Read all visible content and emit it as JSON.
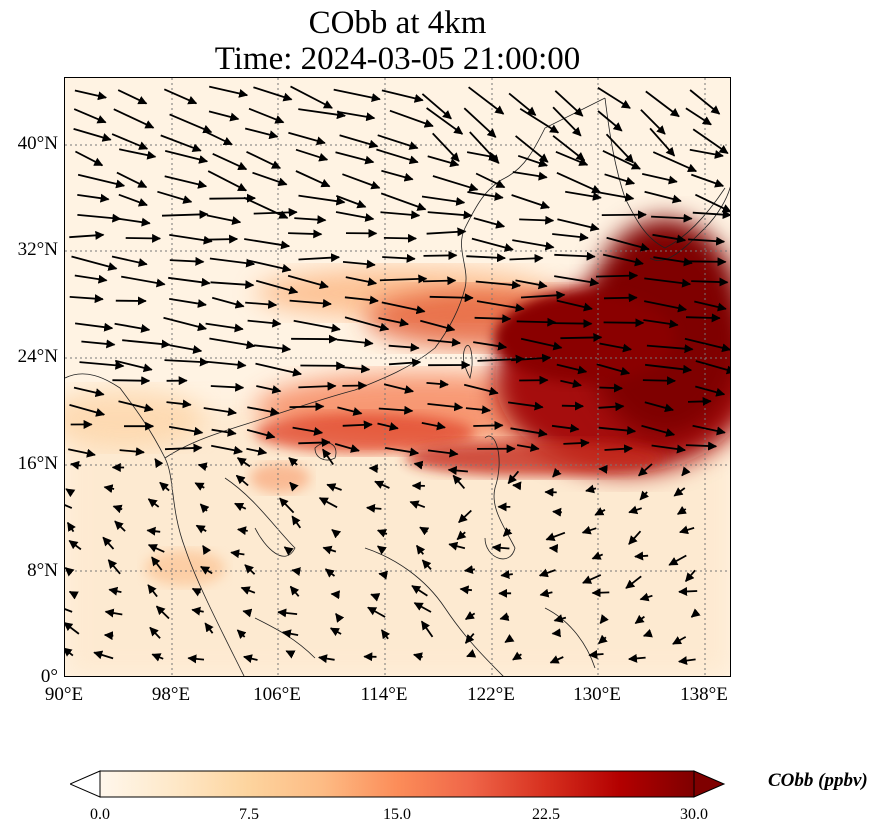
{
  "title": {
    "line1": "CObb at 4km",
    "line2": "Time: 2024-03-05 21:00:00"
  },
  "map": {
    "lon_range": [
      90,
      140
    ],
    "lat_range": [
      0,
      45
    ],
    "lon_ticks": [
      "90°E",
      "98°E",
      "106°E",
      "114°E",
      "122°E",
      "130°E",
      "138°E"
    ],
    "lat_ticks": [
      "0°",
      "8°N",
      "16°N",
      "24°N",
      "32°N",
      "40°N"
    ],
    "gridlines": "dotted",
    "field": "CObb concentration (shaded)",
    "vectors": "wind arrows"
  },
  "colorbar": {
    "label": "CObb (ppbv)",
    "ticks": [
      "0.0",
      "7.5",
      "15.0",
      "22.5",
      "30.0"
    ],
    "min": 0,
    "max": 30,
    "colormap": "OrRd",
    "extend": "both",
    "colors": [
      "#fff7ec",
      "#fee8c8",
      "#fdd49e",
      "#fdbb84",
      "#fc8d59",
      "#ef6548",
      "#d7301f",
      "#b30000",
      "#7f0000"
    ]
  }
}
